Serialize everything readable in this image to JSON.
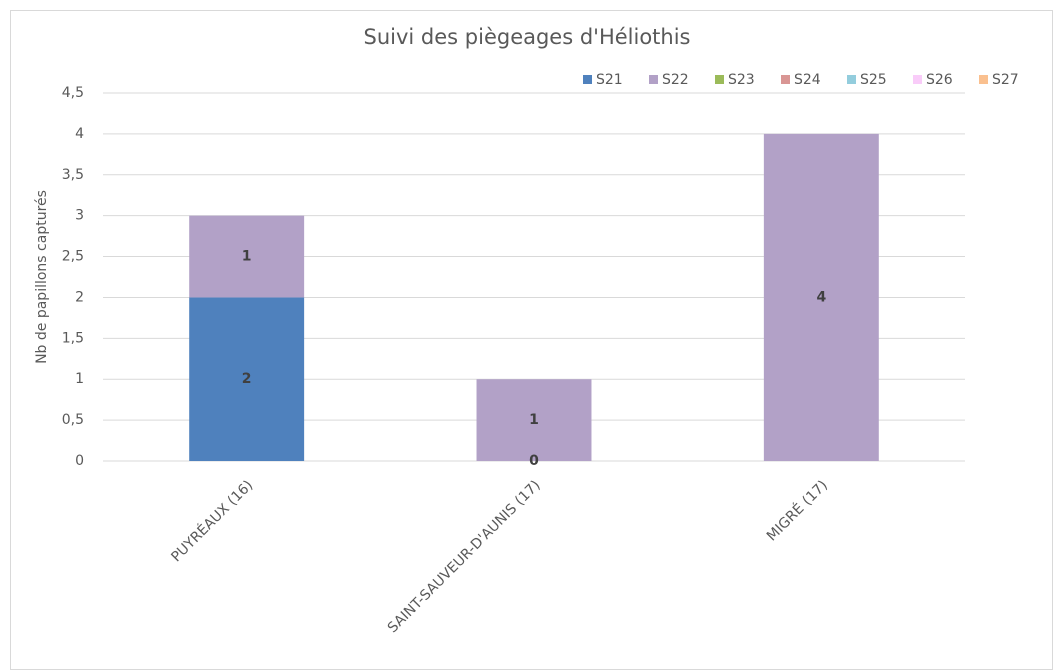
{
  "chart_data": {
    "type": "stacked_bar",
    "title": "Suivi des piègeages d'Héliothis",
    "y_label": "Nb de papillons capturés",
    "categories": [
      "PUYRÉAUX (16)",
      "SAINT-SAUVEUR-D'AUNIS (17)",
      "MIGRÉ (17)"
    ],
    "series": [
      {
        "name": "S21",
        "color": "#4f81bd",
        "values": [
          2,
          0,
          null
        ]
      },
      {
        "name": "S22",
        "color": "#b2a1c7",
        "values": [
          1,
          1,
          4
        ]
      },
      {
        "name": "S23",
        "color": "#9bbb59",
        "values": [
          null,
          null,
          null
        ]
      },
      {
        "name": "S24",
        "color": "#d99694",
        "values": [
          null,
          null,
          null
        ]
      },
      {
        "name": "S25",
        "color": "#93cddd",
        "values": [
          null,
          null,
          null
        ]
      },
      {
        "name": "S26",
        "color": "#f9ccf9",
        "values": [
          null,
          null,
          null
        ]
      },
      {
        "name": "S27",
        "color": "#fac08f",
        "values": [
          null,
          null,
          null
        ]
      }
    ],
    "ylim": [
      0,
      4.5
    ],
    "yticks": [
      0,
      {
        "value": 0.5,
        "label": "0,5"
      },
      1,
      {
        "value": 1.5,
        "label": "1,5"
      },
      2,
      {
        "value": 2.5,
        "label": "2,5"
      },
      3,
      {
        "value": 3.5,
        "label": "3,5"
      },
      4,
      {
        "value": 4.5,
        "label": "4,5"
      }
    ],
    "grid": true,
    "legend": "top-right"
  }
}
